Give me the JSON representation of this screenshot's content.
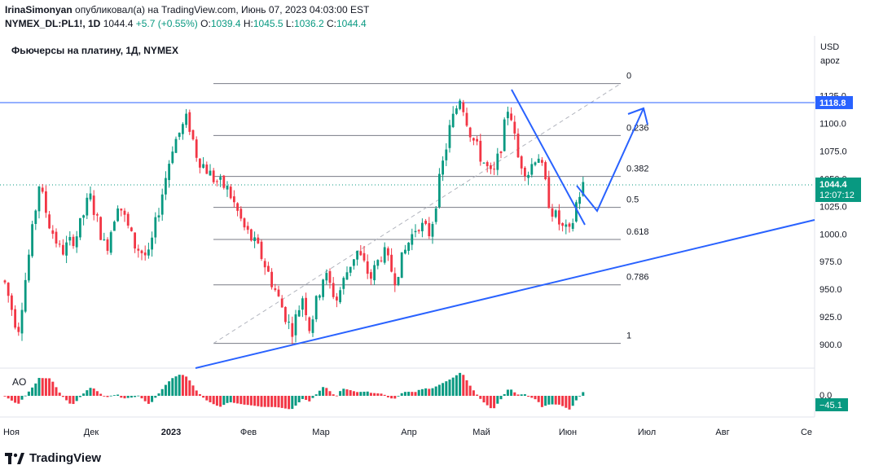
{
  "header": {
    "author": "IrinaSimonyan",
    "published_text": "опубликовал(а) на TradingView.com, Июнь 07, 2023 04:03:00 EST",
    "symbol": "NYMEX_DL:PL1!, 1D",
    "last": "1044.4",
    "change": "+5.7 (+0.55%)",
    "o_label": "O:",
    "o_value": "1039.4",
    "h_label": "H:",
    "h_value": "1045.5",
    "l_label": "L:",
    "l_value": "1036.2",
    "c_label": "C:",
    "c_value": "1044.4"
  },
  "chart": {
    "title": "Фьючерсы на платину, 1Д, NYMEX",
    "currency": "USD",
    "scale_mode": "apoz",
    "indicator_label": "AO"
  },
  "colors": {
    "up": "#089981",
    "down": "#f23645",
    "trend": "#2962ff",
    "hline": "#2962ff",
    "fib": "#787b86"
  },
  "chart_data": {
    "type": "candlestick",
    "y_ticks": [
      "1125.0",
      "1100.0",
      "1075.0",
      "1050.0",
      "1025.0",
      "1000.0",
      "975.0",
      "950.0",
      "925.0",
      "900.0"
    ],
    "y_tick_values": [
      1125,
      1100,
      1075,
      1050,
      1025,
      1000,
      975,
      950,
      925,
      900
    ],
    "x_ticks": [
      "Ноя",
      "Дек",
      "2023",
      "Фев",
      "Мар",
      "Апр",
      "Май",
      "Июн",
      "Июл",
      "Авг",
      "Се"
    ],
    "fib_levels": [
      {
        "label": "0",
        "value": 1136
      },
      {
        "label": "0.236",
        "value": 1089
      },
      {
        "label": "0.382",
        "value": 1052
      },
      {
        "label": "0.5",
        "value": 1024
      },
      {
        "label": "0.618",
        "value": 995
      },
      {
        "label": "0.786",
        "value": 954
      },
      {
        "label": "1",
        "value": 901
      }
    ],
    "horizontal_line": {
      "value": 1118.8,
      "label": "1118.8"
    },
    "last_price": {
      "value": 1044.4,
      "label": "1044.4",
      "countdown": "12:07:12"
    },
    "ao_zero_label": "0.0",
    "ao_value_label": "−45.1"
  },
  "footer": {
    "brand": "TradingView"
  }
}
